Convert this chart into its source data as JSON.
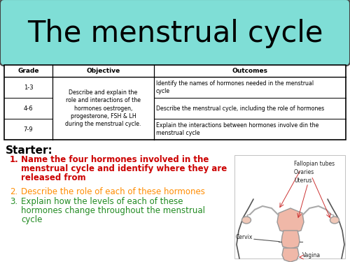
{
  "title": "The menstrual cycle",
  "title_bg": "#7FDED6",
  "bg_color": "#FFFFFF",
  "table_headers": [
    "Grade",
    "Objective",
    "Outcomes"
  ],
  "table_grades": [
    "1-3",
    "4-6",
    "7-9"
  ],
  "table_objective": "Describe and explain the\nrole and interactions of the\nhormones oestrogen,\nprogesterone, FSH & LH\nduring the menstrual cycle.",
  "table_outcomes": [
    "Identify the names of hormones needed in the menstrual\ncycle",
    "Describe the menstrual cycle, including the role of hormones",
    "Explain the interactions between hormones involve din the\nmenstrual cycle"
  ],
  "starter_label": "Starter:",
  "questions": [
    {
      "num": "1.",
      "text": "Name the four hormones involved in the\nmenstrual cycle and identify where they are\nreleased from",
      "color": "#CC0000",
      "bold": true
    },
    {
      "num": "2.",
      "text": "Describe the role of each of these hormones",
      "color": "#FF8C00",
      "bold": false
    },
    {
      "num": "3.",
      "text": "Explain how the levels of each of these\nhormones change throughout the menstrual\ncycle",
      "color": "#228B22",
      "bold": false
    }
  ],
  "diagram_labels": {
    "fallopian": "Fallopian tubes",
    "ovaries": "Ovaries",
    "uterus": "Uterus",
    "cervix": "Cervix",
    "vagina": "Vagina"
  },
  "title_font_size": 30,
  "table_font_size": 6,
  "starter_font_size": 11,
  "q_font_size": 8.5
}
